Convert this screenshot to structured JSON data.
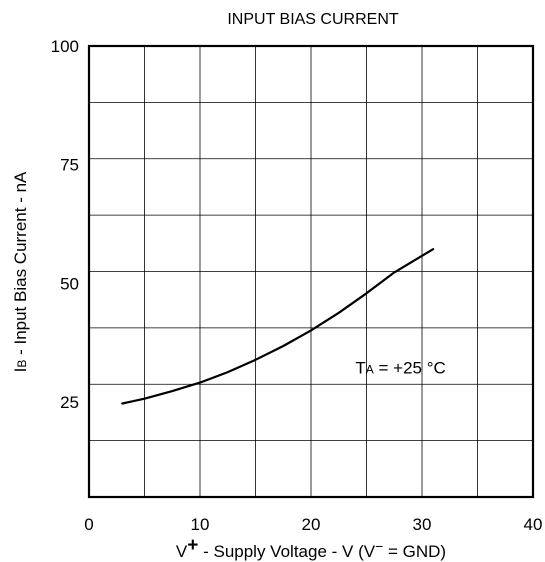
{
  "chart_data": {
    "type": "line",
    "title": "INPUT BIAS CURRENT",
    "xlabel": {
      "prefix": "V",
      "sup": "+",
      "middle": " - Supply Voltage - V (V",
      "sup2": "−",
      "suffix": " = GND)"
    },
    "ylabel": {
      "main": "I",
      "sub": "B",
      "rest": " - Input Bias Current - nA"
    },
    "xlim": [
      0,
      40
    ],
    "ylim": [
      5,
      100
    ],
    "x_ticks": [
      0,
      10,
      20,
      30,
      40
    ],
    "x_tick_labels": [
      "0",
      "10",
      "20",
      "30",
      "40"
    ],
    "y_ticks": [
      25,
      50,
      75,
      100
    ],
    "y_tick_labels": [
      "25",
      "50",
      "75",
      "100"
    ],
    "grid": true,
    "series": [
      {
        "x": [
          3,
          5,
          7.5,
          10,
          12.5,
          15,
          17.5,
          20,
          22.5,
          25,
          27.5,
          30,
          31
        ],
        "y": [
          24.7,
          25.7,
          27.3,
          29.1,
          31.3,
          33.9,
          36.8,
          40.1,
          43.8,
          47.9,
          52.3,
          55.8,
          57.2
        ],
        "color": "#000000"
      }
    ],
    "annotation": {
      "main": "T",
      "sub": "A",
      "rest": " = +25 °C",
      "x": 24,
      "y": 31
    }
  }
}
